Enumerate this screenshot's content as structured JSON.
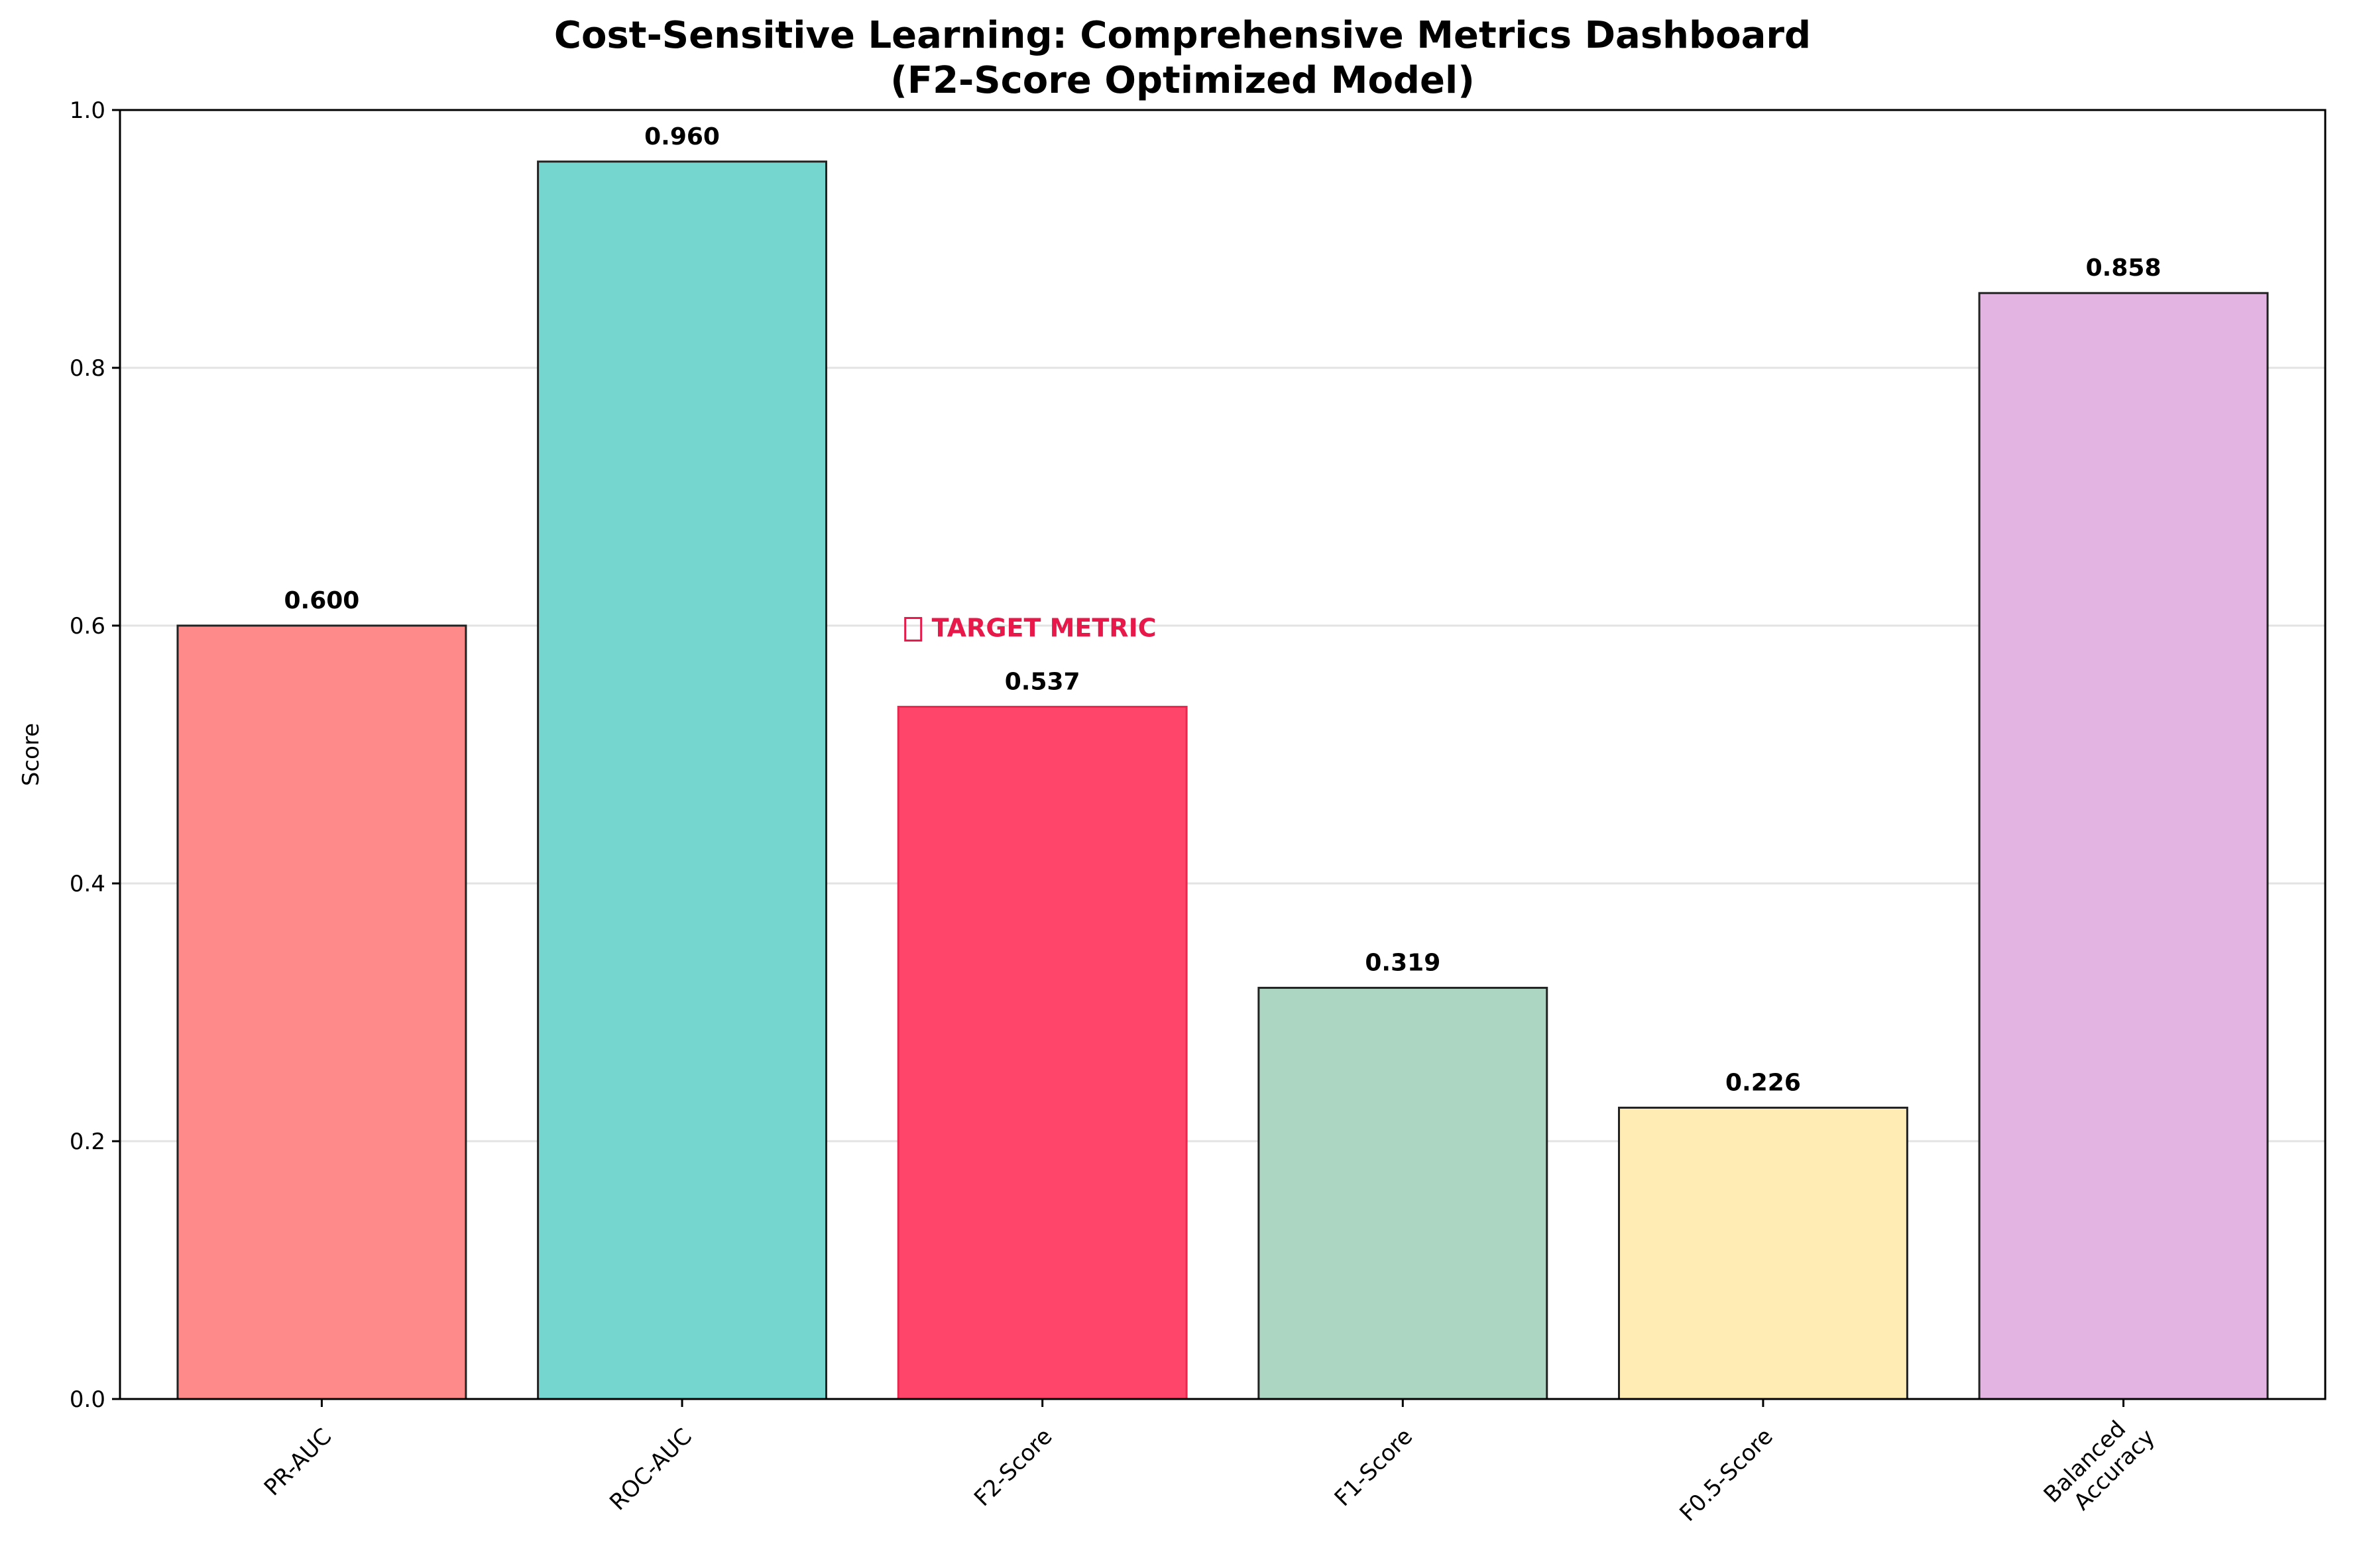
{
  "chart_data": {
    "type": "bar",
    "title": "Cost-Sensitive Learning: Comprehensive Metrics Dashboard",
    "subtitle": "(F2-Score Optimized Model)",
    "xlabel": "",
    "ylabel": "Score",
    "ylim": [
      0,
      1.0
    ],
    "yticks": [
      "0.0",
      "0.2",
      "0.4",
      "0.6",
      "0.8",
      "1.0"
    ],
    "grid": "horizontal",
    "categories": [
      {
        "line1": "PR-AUC",
        "line2": ""
      },
      {
        "line1": "ROC-AUC",
        "line2": ""
      },
      {
        "line1": "F2-Score",
        "line2": ""
      },
      {
        "line1": "F1-Score",
        "line2": ""
      },
      {
        "line1": "F0.5-Score",
        "line2": ""
      },
      {
        "line1": "Balanced",
        "line2": "Accuracy"
      }
    ],
    "values": [
      0.6,
      0.96,
      0.537,
      0.319,
      0.226,
      0.858
    ],
    "value_labels": [
      "0.600",
      "0.960",
      "0.537",
      "0.319",
      "0.226",
      "0.858"
    ],
    "colors": [
      "#ff8a8a",
      "#74d6cf",
      "#ff4569",
      "#acd6c2",
      "#ffecb5",
      "#e3b3e2"
    ],
    "edge_colors": [
      "#222222",
      "#222222",
      "#e8284f",
      "#222222",
      "#222222",
      "#222222"
    ],
    "annotation": {
      "category_index": 2,
      "icon": "target-icon",
      "text": "TARGET METRIC",
      "color": "#e8194a"
    }
  }
}
